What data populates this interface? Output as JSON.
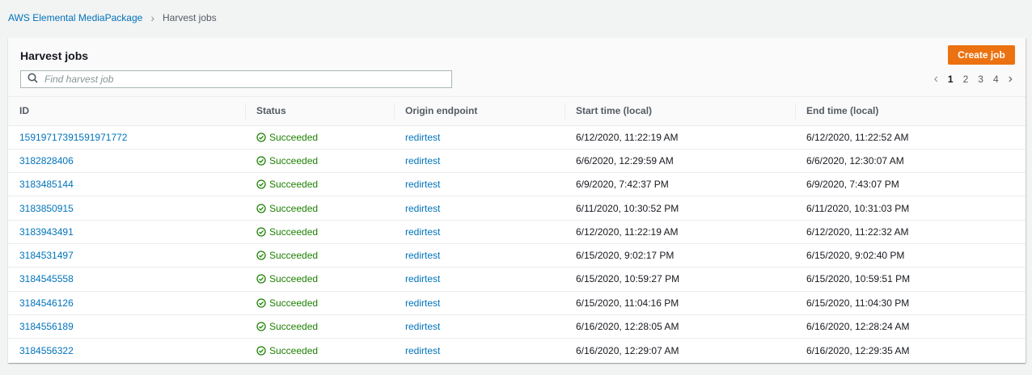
{
  "breadcrumb": {
    "root": "AWS Elemental MediaPackage",
    "current": "Harvest jobs"
  },
  "panel": {
    "title": "Harvest jobs",
    "create_label": "Create job",
    "search_placeholder": "Find harvest job"
  },
  "pagination": {
    "pages": [
      "1",
      "2",
      "3",
      "4"
    ],
    "current": "1"
  },
  "colors": {
    "accent": "#ec7211",
    "link": "#0073bb",
    "success": "#1d8102"
  },
  "table": {
    "columns": [
      "ID",
      "Status",
      "Origin endpoint",
      "Start time (local)",
      "End time (local)"
    ],
    "rows": [
      {
        "id": "15919717391591971772",
        "status": "Succeeded",
        "origin": "redirtest",
        "start": "6/12/2020, 11:22:19 AM",
        "end": "6/12/2020, 11:22:52 AM"
      },
      {
        "id": "3182828406",
        "status": "Succeeded",
        "origin": "redirtest",
        "start": "6/6/2020, 12:29:59 AM",
        "end": "6/6/2020, 12:30:07 AM"
      },
      {
        "id": "3183485144",
        "status": "Succeeded",
        "origin": "redirtest",
        "start": "6/9/2020, 7:42:37 PM",
        "end": "6/9/2020, 7:43:07 PM"
      },
      {
        "id": "3183850915",
        "status": "Succeeded",
        "origin": "redirtest",
        "start": "6/11/2020, 10:30:52 PM",
        "end": "6/11/2020, 10:31:03 PM"
      },
      {
        "id": "3183943491",
        "status": "Succeeded",
        "origin": "redirtest",
        "start": "6/12/2020, 11:22:19 AM",
        "end": "6/12/2020, 11:22:32 AM"
      },
      {
        "id": "3184531497",
        "status": "Succeeded",
        "origin": "redirtest",
        "start": "6/15/2020, 9:02:17 PM",
        "end": "6/15/2020, 9:02:40 PM"
      },
      {
        "id": "3184545558",
        "status": "Succeeded",
        "origin": "redirtest",
        "start": "6/15/2020, 10:59:27 PM",
        "end": "6/15/2020, 10:59:51 PM"
      },
      {
        "id": "3184546126",
        "status": "Succeeded",
        "origin": "redirtest",
        "start": "6/15/2020, 11:04:16 PM",
        "end": "6/15/2020, 11:04:30 PM"
      },
      {
        "id": "3184556189",
        "status": "Succeeded",
        "origin": "redirtest",
        "start": "6/16/2020, 12:28:05 AM",
        "end": "6/16/2020, 12:28:24 AM"
      },
      {
        "id": "3184556322",
        "status": "Succeeded",
        "origin": "redirtest",
        "start": "6/16/2020, 12:29:07 AM",
        "end": "6/16/2020, 12:29:35 AM"
      }
    ]
  }
}
